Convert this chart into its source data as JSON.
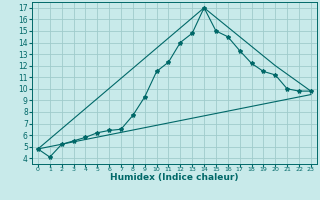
{
  "title": "",
  "xlabel": "Humidex (Indice chaleur)",
  "background_color": "#c8eaea",
  "grid_color": "#a0cccc",
  "line_color": "#006868",
  "xlim": [
    -0.5,
    23.5
  ],
  "ylim": [
    3.5,
    17.5
  ],
  "xticks": [
    0,
    1,
    2,
    3,
    4,
    5,
    6,
    7,
    8,
    9,
    10,
    11,
    12,
    13,
    14,
    15,
    16,
    17,
    18,
    19,
    20,
    21,
    22,
    23
  ],
  "yticks": [
    4,
    5,
    6,
    7,
    8,
    9,
    10,
    11,
    12,
    13,
    14,
    15,
    16,
    17
  ],
  "series1": [
    [
      0,
      4.8
    ],
    [
      1,
      4.1
    ],
    [
      2,
      5.2
    ],
    [
      3,
      5.5
    ],
    [
      4,
      5.8
    ],
    [
      5,
      6.2
    ],
    [
      6,
      6.4
    ],
    [
      7,
      6.5
    ],
    [
      8,
      7.7
    ],
    [
      9,
      9.3
    ],
    [
      10,
      11.5
    ],
    [
      11,
      12.3
    ],
    [
      12,
      14.0
    ],
    [
      13,
      14.8
    ],
    [
      14,
      17.0
    ],
    [
      15,
      15.0
    ],
    [
      16,
      14.5
    ],
    [
      17,
      13.3
    ],
    [
      18,
      12.2
    ],
    [
      19,
      11.5
    ],
    [
      20,
      11.2
    ],
    [
      21,
      10.0
    ],
    [
      22,
      9.8
    ],
    [
      23,
      9.8
    ]
  ],
  "series2": [
    [
      0,
      4.8
    ],
    [
      14,
      17.0
    ],
    [
      20,
      12.0
    ],
    [
      23,
      9.8
    ]
  ],
  "series3": [
    [
      0,
      4.8
    ],
    [
      23,
      9.5
    ]
  ]
}
